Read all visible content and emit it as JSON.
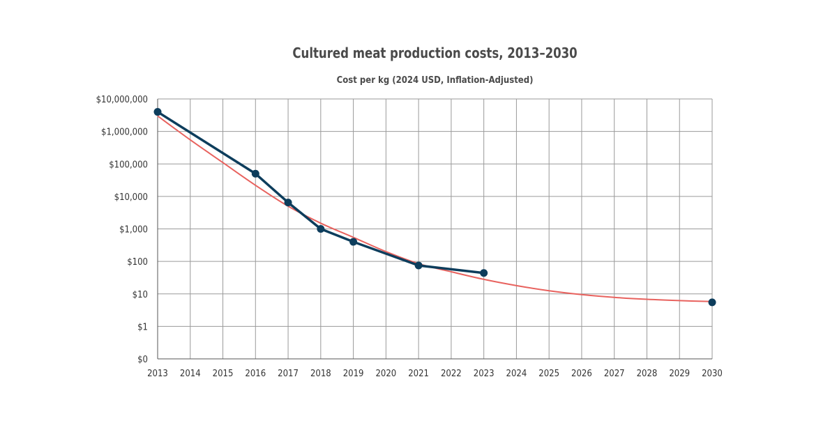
{
  "chart_data": {
    "type": "line",
    "title": "Cultured meat production costs, 2013–2030",
    "subtitle": "Cost per kg (2024 USD, Inflation-Adjusted)",
    "xlabel": "",
    "ylabel": "",
    "y_scale": "log",
    "grid": true,
    "x_ticks": [
      "2013",
      "2014",
      "2015",
      "2016",
      "2017",
      "2018",
      "2019",
      "2020",
      "2021",
      "2022",
      "2023",
      "2024",
      "2025",
      "2026",
      "2027",
      "2028",
      "2029",
      "2030"
    ],
    "y_ticks": [
      "$0",
      "$1",
      "$10",
      "$100",
      "$1,000",
      "$10,000",
      "$100,000",
      "$1,000,000",
      "$10,000,000"
    ],
    "series": [
      {
        "color": "#0d3d5c",
        "style": "line-with-markers",
        "points": [
          {
            "x": 2013,
            "y": 4000000
          },
          {
            "x": 2016,
            "y": 50000
          },
          {
            "x": 2017,
            "y": 6500
          },
          {
            "x": 2018,
            "y": 1000
          },
          {
            "x": 2019,
            "y": 400
          },
          {
            "x": 2021,
            "y": 75
          },
          {
            "x": 2023,
            "y": 44
          }
        ]
      },
      {
        "color": "#0d3d5c",
        "style": "marker-only",
        "points": [
          {
            "x": 2030,
            "y": 5.5
          }
        ]
      },
      {
        "color": "#e8625e",
        "style": "trend-curve",
        "points": [
          {
            "x": 2013,
            "y": 3000000
          },
          {
            "x": 2014,
            "y": 550000
          },
          {
            "x": 2015,
            "y": 110000
          },
          {
            "x": 2016,
            "y": 22000
          },
          {
            "x": 2017,
            "y": 5000
          },
          {
            "x": 2018,
            "y": 1500
          },
          {
            "x": 2019,
            "y": 550
          },
          {
            "x": 2020,
            "y": 200
          },
          {
            "x": 2021,
            "y": 85
          },
          {
            "x": 2022,
            "y": 48
          },
          {
            "x": 2023,
            "y": 28
          },
          {
            "x": 2024,
            "y": 18
          },
          {
            "x": 2025,
            "y": 12.5
          },
          {
            "x": 2026,
            "y": 9.5
          },
          {
            "x": 2027,
            "y": 7.8
          },
          {
            "x": 2028,
            "y": 6.8
          },
          {
            "x": 2029,
            "y": 6.2
          },
          {
            "x": 2030,
            "y": 5.8
          }
        ]
      }
    ]
  }
}
